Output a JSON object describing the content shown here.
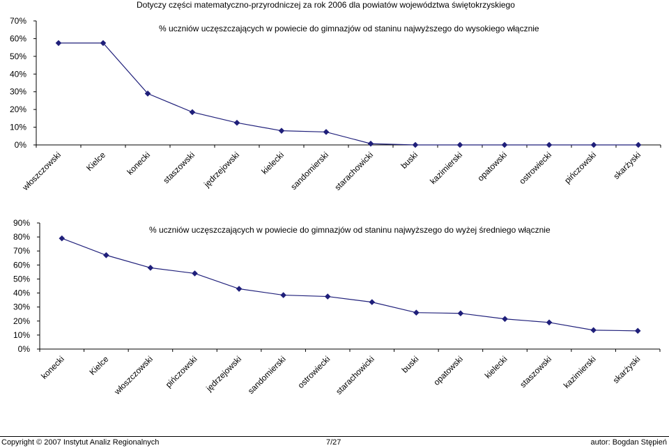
{
  "page_title": "Dotyczy części matematyczno-przyrodniczej za rok 2006 dla powiatów województwa świętokrzyskiego",
  "colors": {
    "line": "#1f1f7a",
    "axis": "#000000"
  },
  "chart_data": [
    {
      "type": "line",
      "title": "% uczniów uczęszczających w powiecie do gimnazjów od staninu najwyższego do wysokiego włącznie",
      "xlabel": "",
      "ylabel": "",
      "ylim": [
        0,
        70
      ],
      "yticks": [
        0,
        10,
        20,
        30,
        40,
        50,
        60,
        70
      ],
      "grid": false,
      "categories": [
        "włoszczowski",
        "Kielce",
        "konecki",
        "staszowski",
        "jędrzejowski",
        "kielecki",
        "sandomierski",
        "starachowicki",
        "buski",
        "kazimierski",
        "opatowski",
        "ostrowiecki",
        "pińczowski",
        "skarżyski"
      ],
      "values": [
        57.5,
        57.5,
        29.0,
        18.5,
        12.5,
        8.0,
        7.3,
        0.7,
        0,
        0,
        0,
        0,
        0,
        0
      ]
    },
    {
      "type": "line",
      "title": "% uczniów uczęszczających w powiecie do gimnazjów od staninu najwyższego do wyżej średniego włącznie",
      "xlabel": "",
      "ylabel": "",
      "ylim": [
        0,
        90
      ],
      "yticks": [
        0,
        10,
        20,
        30,
        40,
        50,
        60,
        70,
        80,
        90
      ],
      "grid": false,
      "categories": [
        "konecki",
        "Kielce",
        "włoszczowski",
        "pińczowski",
        "jędrzejowski",
        "sandomierski",
        "ostrowiecki",
        "starachowicki",
        "buski",
        "opatowski",
        "kielecki",
        "staszowski",
        "kazimierski",
        "skarżyski"
      ],
      "values": [
        79.0,
        67.0,
        58.0,
        54.0,
        43.0,
        38.5,
        37.5,
        33.5,
        26.0,
        25.5,
        21.5,
        19.0,
        13.5,
        13.0
      ]
    }
  ],
  "footer": {
    "copyright": "Copyright © 2007 Instytut Analiz Regionalnych",
    "page_number": "7/27",
    "author": "autor: Bogdan Stępień"
  }
}
